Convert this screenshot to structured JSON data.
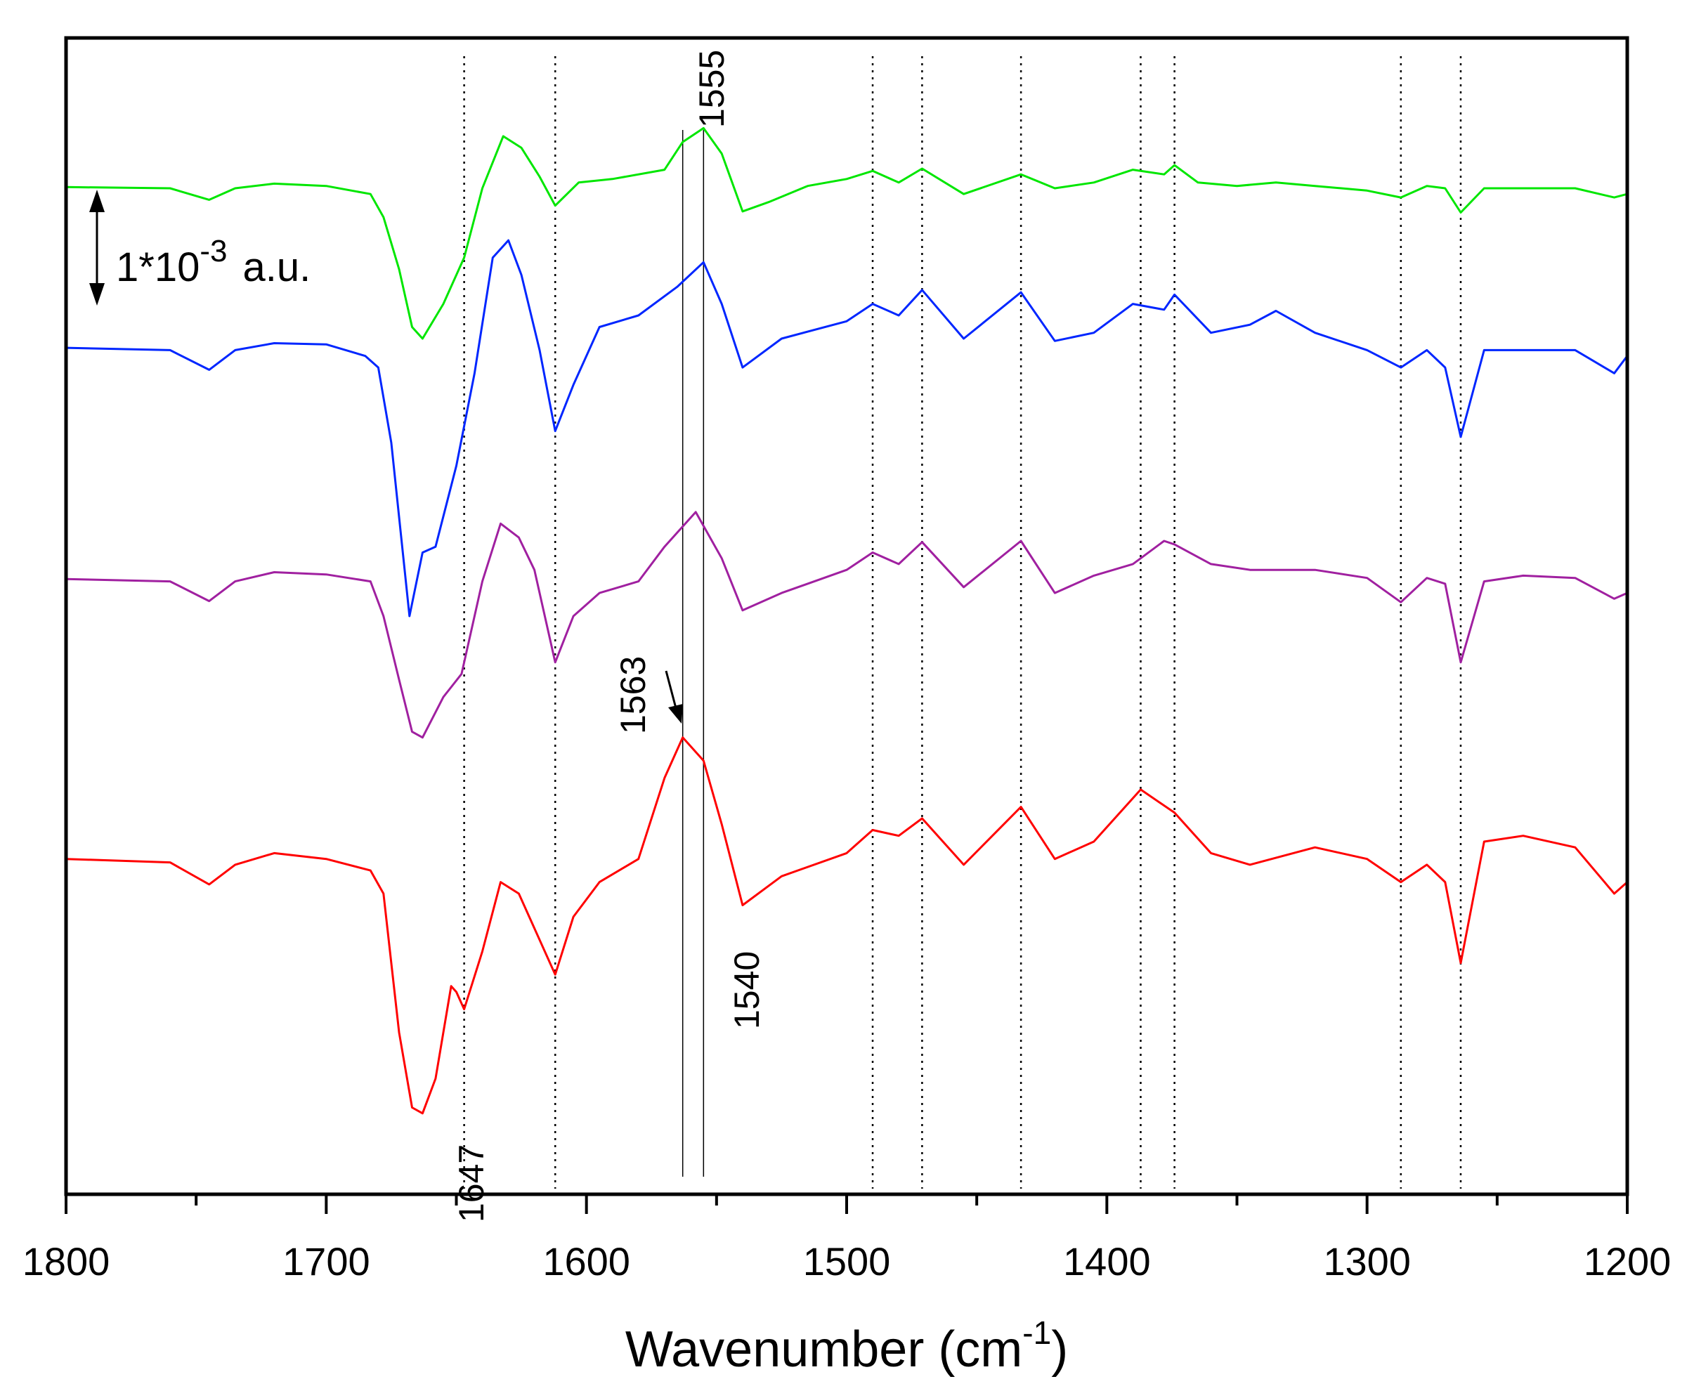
{
  "chart_data": {
    "type": "line",
    "title": "",
    "xlabel": "Wavenumber (cm",
    "xlabel_superscript": "-1",
    "xlabel_suffix": ")",
    "ylabel": "",
    "xlim": [
      1800,
      1200
    ],
    "ylim": [
      0,
      1000
    ],
    "x_ticks": [
      1800,
      1700,
      1600,
      1500,
      1400,
      1300,
      1200
    ],
    "x_tick_labels": [
      "1800",
      "1700",
      "1600",
      "1500",
      "1400",
      "1300",
      "1200"
    ],
    "grid": false,
    "scale_bar": {
      "label_base": "1*10",
      "label_exp": "-3",
      "label_unit": "a.u."
    },
    "reference_lines": [
      1647,
      1612,
      1490,
      1471,
      1433,
      1387,
      1374,
      1287,
      1264
    ],
    "solid_reference_lines": [
      1563,
      1555
    ],
    "annotations": [
      {
        "text": "1555",
        "x": 1555
      },
      {
        "text": "1563",
        "x": 1563,
        "arrow": true
      },
      {
        "text": "1540",
        "x": 1540
      },
      {
        "text": "1647",
        "x": 1647
      }
    ],
    "series": [
      {
        "name": "green",
        "color": "#00e600",
        "x": [
          1800,
          1760,
          1745,
          1735,
          1720,
          1700,
          1683,
          1678,
          1672,
          1667,
          1663,
          1655,
          1647,
          1640,
          1632,
          1625,
          1618,
          1612,
          1603,
          1590,
          1570,
          1563,
          1555,
          1548,
          1540,
          1530,
          1515,
          1500,
          1490,
          1480,
          1471,
          1455,
          1433,
          1420,
          1405,
          1390,
          1378,
          1374,
          1365,
          1350,
          1335,
          1320,
          1300,
          1287,
          1277,
          1270,
          1264,
          1255,
          1240,
          1220,
          1205,
          1200
        ],
        "y": [
          871,
          870,
          860,
          870,
          874,
          872,
          865,
          845,
          800,
          750,
          740,
          770,
          810,
          870,
          915,
          905,
          880,
          855,
          875,
          878,
          886,
          910,
          922,
          900,
          850,
          858,
          872,
          878,
          885,
          875,
          887,
          865,
          882,
          870,
          875,
          886,
          882,
          890,
          875,
          872,
          875,
          872,
          868,
          862,
          872,
          870,
          849,
          870,
          870,
          870,
          862,
          865
        ]
      },
      {
        "name": "blue",
        "color": "#0026ff",
        "x": [
          1800,
          1760,
          1745,
          1735,
          1720,
          1700,
          1685,
          1680,
          1675,
          1668,
          1663,
          1658,
          1650,
          1643,
          1636,
          1630,
          1625,
          1618,
          1612,
          1605,
          1595,
          1580,
          1565,
          1555,
          1548,
          1540,
          1525,
          1500,
          1490,
          1480,
          1471,
          1455,
          1433,
          1420,
          1405,
          1390,
          1378,
          1374,
          1360,
          1345,
          1335,
          1320,
          1300,
          1287,
          1277,
          1270,
          1264,
          1255,
          1240,
          1220,
          1205,
          1200
        ],
        "y": [
          732,
          730,
          713,
          730,
          736,
          735,
          725,
          715,
          650,
          500,
          555,
          560,
          630,
          710,
          810,
          825,
          795,
          730,
          660,
          700,
          750,
          760,
          785,
          806,
          770,
          715,
          740,
          755,
          770,
          760,
          782,
          740,
          780,
          738,
          745,
          770,
          765,
          778,
          745,
          752,
          764,
          745,
          730,
          715,
          730,
          715,
          655,
          730,
          730,
          730,
          710,
          725
        ]
      },
      {
        "name": "purple",
        "color": "#a020a0",
        "x": [
          1800,
          1760,
          1745,
          1735,
          1720,
          1700,
          1683,
          1678,
          1672,
          1667,
          1663,
          1655,
          1648,
          1640,
          1633,
          1626,
          1620,
          1612,
          1605,
          1595,
          1580,
          1570,
          1558,
          1548,
          1540,
          1525,
          1500,
          1490,
          1480,
          1471,
          1455,
          1433,
          1420,
          1405,
          1390,
          1378,
          1374,
          1360,
          1345,
          1320,
          1300,
          1287,
          1277,
          1270,
          1264,
          1255,
          1240,
          1220,
          1205,
          1200
        ],
        "y": [
          532,
          530,
          513,
          530,
          538,
          536,
          530,
          500,
          445,
          400,
          395,
          430,
          450,
          530,
          580,
          568,
          540,
          460,
          500,
          520,
          530,
          560,
          590,
          550,
          505,
          520,
          540,
          555,
          545,
          564,
          525,
          565,
          520,
          535,
          545,
          565,
          562,
          545,
          540,
          540,
          533,
          512,
          533,
          528,
          460,
          530,
          535,
          533,
          515,
          520
        ]
      },
      {
        "name": "red",
        "color": "#ff0000",
        "x": [
          1800,
          1760,
          1745,
          1735,
          1720,
          1700,
          1683,
          1678,
          1672,
          1667,
          1663,
          1658,
          1652,
          1650,
          1647,
          1640,
          1633,
          1626,
          1620,
          1612,
          1605,
          1595,
          1580,
          1570,
          1563,
          1555,
          1548,
          1540,
          1525,
          1500,
          1490,
          1480,
          1471,
          1455,
          1433,
          1420,
          1405,
          1387,
          1374,
          1360,
          1345,
          1320,
          1300,
          1287,
          1277,
          1270,
          1264,
          1255,
          1240,
          1220,
          1205,
          1200
        ],
        "y": [
          290,
          287,
          268,
          285,
          295,
          290,
          280,
          260,
          140,
          75,
          70,
          100,
          180,
          175,
          160,
          210,
          270,
          260,
          230,
          190,
          240,
          270,
          290,
          360,
          395,
          375,
          320,
          250,
          275,
          295,
          315,
          310,
          325,
          285,
          335,
          290,
          305,
          350,
          330,
          295,
          285,
          300,
          290,
          270,
          285,
          270,
          200,
          305,
          310,
          300,
          260,
          270
        ]
      }
    ]
  }
}
